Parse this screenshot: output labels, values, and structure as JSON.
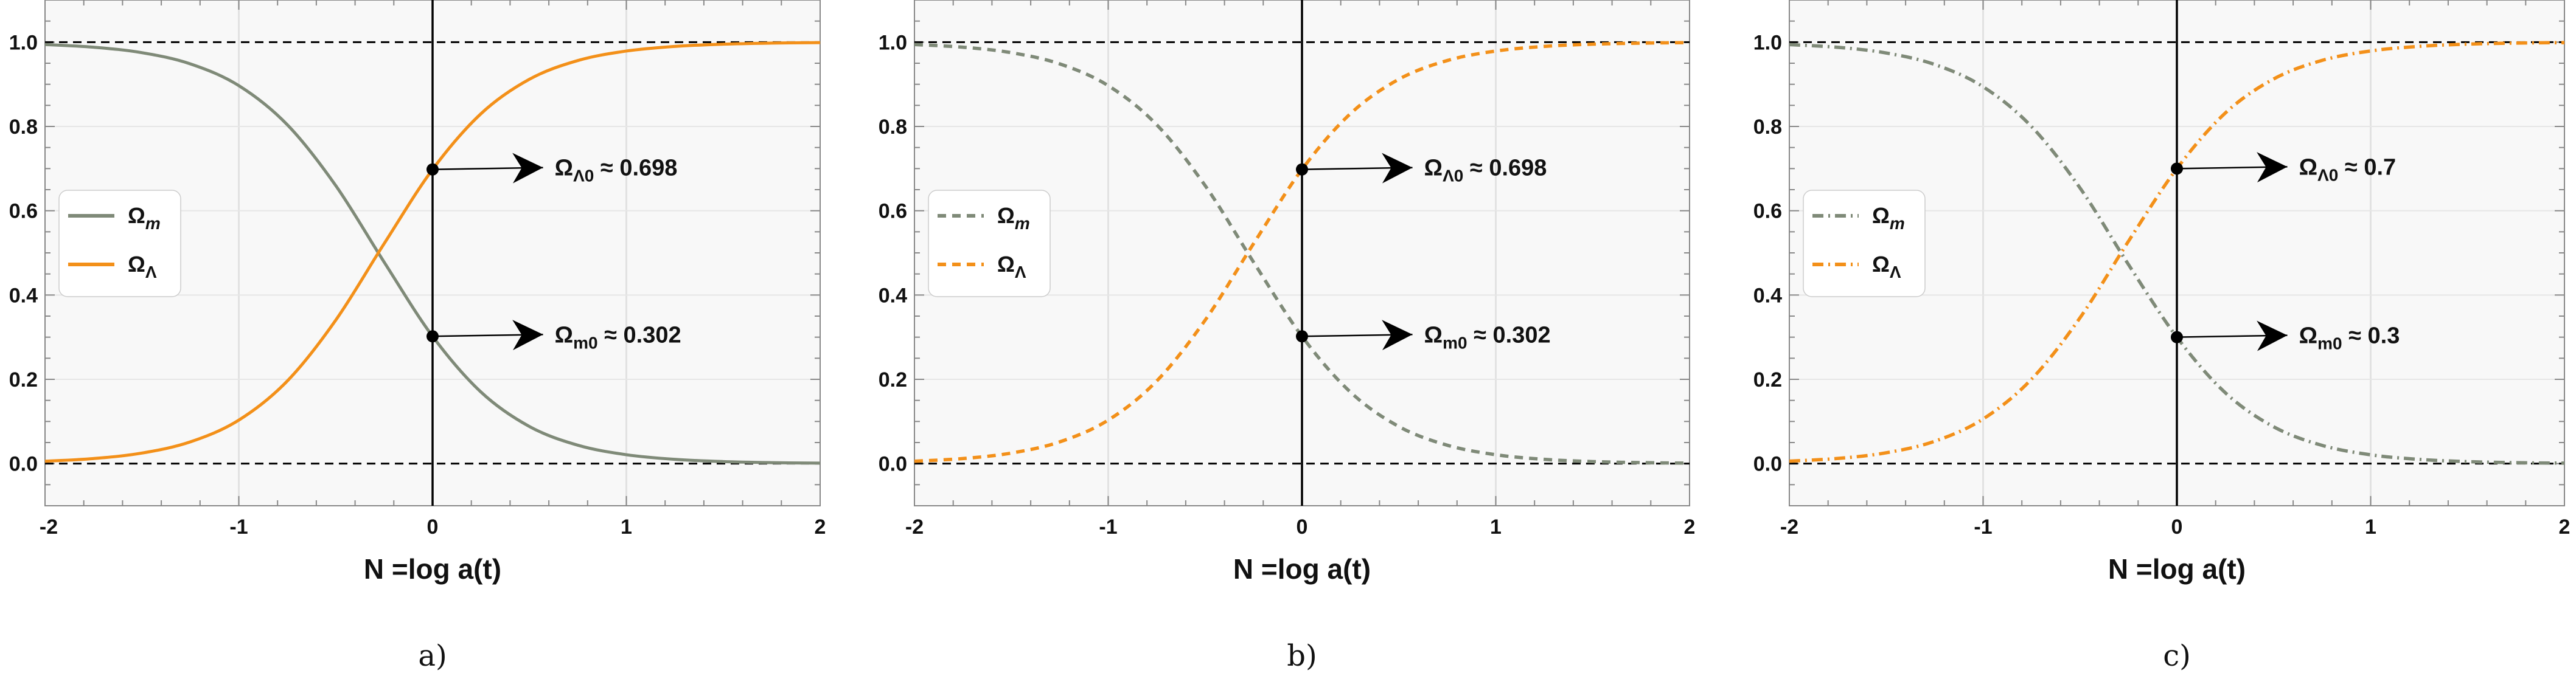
{
  "chart_data": [
    {
      "type": "line",
      "panel_label": "a)",
      "xlabel": "N =log a(t)",
      "ylabel": "",
      "xlim": [
        -2,
        2
      ],
      "ylim": [
        -0.1,
        1.1
      ],
      "xticks": [
        "-2",
        "-1",
        "0",
        "1",
        "2"
      ],
      "yticks": [
        "0.0",
        "0.2",
        "0.4",
        "0.6",
        "0.8",
        "1.0"
      ],
      "grid": true,
      "legend_position": "center-left",
      "line_style": "solid",
      "x": [
        -2,
        -1.75,
        -1.5,
        -1.25,
        -1,
        -0.75,
        -0.5,
        -0.25,
        0,
        0.25,
        0.5,
        0.75,
        1,
        1.25,
        1.5,
        1.75,
        2
      ],
      "series": [
        {
          "name": "Ωm",
          "legend_main": "Ω",
          "legend_sub": "m",
          "color": "#7f8a78",
          "values": [
            0.9943,
            0.988,
            0.975,
            0.9484,
            0.8968,
            0.8041,
            0.6598,
            0.4781,
            0.302,
            0.1697,
            0.088,
            0.0436,
            0.0211,
            0.0101,
            0.0048,
            0.0023,
            0.0011
          ]
        },
        {
          "name": "ΩΛ",
          "legend_main": "Ω",
          "legend_sub": "Λ",
          "color": "#f39019",
          "values": [
            0.0057,
            0.012,
            0.025,
            0.0516,
            0.1032,
            0.1959,
            0.3402,
            0.5219,
            0.698,
            0.8303,
            0.912,
            0.9564,
            0.9789,
            0.9899,
            0.9952,
            0.9977,
            0.9989
          ]
        }
      ],
      "reference_lines": {
        "horizontal": [
          0,
          1
        ],
        "vertical": [
          0
        ]
      },
      "annotations": [
        {
          "main": "Ω",
          "sub": "Λ0",
          "text": " ≈ 0.698",
          "x": 0,
          "y": 0.698
        },
        {
          "main": "Ω",
          "sub": "m0",
          "text": " ≈ 0.302",
          "x": 0,
          "y": 0.302
        }
      ]
    },
    {
      "type": "line",
      "panel_label": "b)",
      "xlabel": "N =log a(t)",
      "ylabel": "",
      "xlim": [
        -2,
        2
      ],
      "ylim": [
        -0.1,
        1.1
      ],
      "xticks": [
        "-2",
        "-1",
        "0",
        "1",
        "2"
      ],
      "yticks": [
        "0.0",
        "0.2",
        "0.4",
        "0.6",
        "0.8",
        "1.0"
      ],
      "grid": true,
      "legend_position": "center-left",
      "line_style": "dashed",
      "x": [
        -2,
        -1.75,
        -1.5,
        -1.25,
        -1,
        -0.75,
        -0.5,
        -0.25,
        0,
        0.25,
        0.5,
        0.75,
        1,
        1.25,
        1.5,
        1.75,
        2
      ],
      "series": [
        {
          "name": "Ωm",
          "legend_main": "Ω",
          "legend_sub": "m",
          "color": "#7f8a78",
          "values": [
            0.9943,
            0.988,
            0.975,
            0.9484,
            0.8968,
            0.8041,
            0.6598,
            0.4781,
            0.302,
            0.1697,
            0.088,
            0.0436,
            0.0211,
            0.0101,
            0.0048,
            0.0023,
            0.0011
          ]
        },
        {
          "name": "ΩΛ",
          "legend_main": "Ω",
          "legend_sub": "Λ",
          "color": "#f39019",
          "values": [
            0.0057,
            0.012,
            0.025,
            0.0516,
            0.1032,
            0.1959,
            0.3402,
            0.5219,
            0.698,
            0.8303,
            0.912,
            0.9564,
            0.9789,
            0.9899,
            0.9952,
            0.9977,
            0.9989
          ]
        }
      ],
      "reference_lines": {
        "horizontal": [
          0,
          1
        ],
        "vertical": [
          0
        ]
      },
      "annotations": [
        {
          "main": "Ω",
          "sub": "Λ0",
          "text": " ≈ 0.698",
          "x": 0,
          "y": 0.698
        },
        {
          "main": "Ω",
          "sub": "m0",
          "text": " ≈ 0.302",
          "x": 0,
          "y": 0.302
        }
      ]
    },
    {
      "type": "line",
      "panel_label": "c)",
      "xlabel": "N =log a(t)",
      "ylabel": "",
      "xlim": [
        -2,
        2
      ],
      "ylim": [
        -0.1,
        1.1
      ],
      "xticks": [
        "-2",
        "-1",
        "0",
        "1",
        "2"
      ],
      "yticks": [
        "0.0",
        "0.2",
        "0.4",
        "0.6",
        "0.8",
        "1.0"
      ],
      "grid": true,
      "legend_position": "center-left",
      "line_style": "dashdot",
      "x": [
        -2,
        -1.75,
        -1.5,
        -1.25,
        -1,
        -0.75,
        -0.5,
        -0.25,
        0,
        0.25,
        0.5,
        0.75,
        1,
        1.25,
        1.5,
        1.75,
        2
      ],
      "series": [
        {
          "name": "Ωm",
          "legend_main": "Ω",
          "legend_sub": "m",
          "color": "#7f8a78",
          "values": [
            0.9942,
            0.9877,
            0.9743,
            0.947,
            0.8941,
            0.7996,
            0.6541,
            0.4725,
            0.3,
            0.1681,
            0.0872,
            0.0432,
            0.0209,
            0.01,
            0.0047,
            0.0022,
            0.0011
          ]
        },
        {
          "name": "ΩΛ",
          "legend_main": "Ω",
          "legend_sub": "Λ",
          "color": "#f39019",
          "values": [
            0.0058,
            0.0123,
            0.0257,
            0.053,
            0.1059,
            0.2004,
            0.3459,
            0.5275,
            0.7,
            0.8319,
            0.9128,
            0.9568,
            0.9791,
            0.99,
            0.9953,
            0.9978,
            0.9989
          ]
        }
      ],
      "reference_lines": {
        "horizontal": [
          0,
          1
        ],
        "vertical": [
          0
        ]
      },
      "annotations": [
        {
          "main": "Ω",
          "sub": "Λ0",
          "text": " ≈ 0.7",
          "x": 0,
          "y": 0.7
        },
        {
          "main": "Ω",
          "sub": "m0",
          "text": " ≈ 0.3",
          "x": 0,
          "y": 0.3
        }
      ]
    }
  ]
}
